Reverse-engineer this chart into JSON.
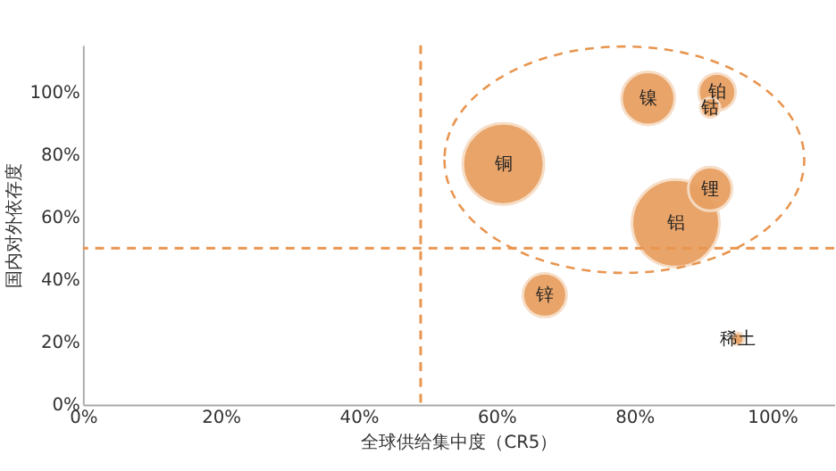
{
  "chart_data": {
    "type": "bubble",
    "xlabel": "全球供给集中度（CR5）",
    "ylabel": "国内对外依存度",
    "xlim": [
      0,
      109
    ],
    "ylim": [
      0,
      115
    ],
    "xticks": [
      {
        "value": 0,
        "label": "0%"
      },
      {
        "value": 20,
        "label": "20%"
      },
      {
        "value": 40,
        "label": "40%"
      },
      {
        "value": 60,
        "label": "60%"
      },
      {
        "value": 80,
        "label": "80%"
      },
      {
        "value": 100,
        "label": "100%"
      }
    ],
    "yticks": [
      {
        "value": 0,
        "label": "0%"
      },
      {
        "value": 20,
        "label": "20%"
      },
      {
        "value": 40,
        "label": "40%"
      },
      {
        "value": 60,
        "label": "60%"
      },
      {
        "value": 80,
        "label": "80%"
      },
      {
        "value": 100,
        "label": "100%"
      }
    ],
    "grid": false,
    "ref_lines": [
      {
        "axis": "x",
        "value": 49,
        "color": "#e8954f",
        "line_style": "dashed"
      },
      {
        "axis": "y",
        "value": 50,
        "color": "#e8954f",
        "line_style": "dashed"
      }
    ],
    "series": [
      {
        "name": "铜",
        "color": "#e8a062",
        "x": [
          61
        ],
        "values": [
          77
        ],
        "sizes": [
          0.86
        ]
      },
      {
        "name": "镍",
        "color": "#e8a062",
        "x": [
          82
        ],
        "values": [
          98
        ],
        "sizes": [
          0.37
        ]
      },
      {
        "name": "钴",
        "color": "#e8a062",
        "x": [
          91
        ],
        "values": [
          95
        ],
        "sizes": [
          0.05
        ]
      },
      {
        "name": "铂",
        "color": "#e8a062",
        "x": [
          92
        ],
        "values": [
          100
        ],
        "sizes": [
          0.18
        ]
      },
      {
        "name": "铝",
        "color": "#e8a062",
        "x": [
          86
        ],
        "values": [
          58
        ],
        "sizes": [
          1
        ]
      },
      {
        "name": "锂",
        "color": "#e8a062",
        "x": [
          91
        ],
        "values": [
          69
        ],
        "sizes": [
          0.25
        ]
      },
      {
        "name": "锌",
        "color": "#e8a062",
        "x": [
          67
        ],
        "values": [
          35
        ],
        "sizes": [
          0.25
        ]
      },
      {
        "name": "稀土",
        "color": "#e8a062",
        "x": [
          95
        ],
        "values": [
          21
        ],
        "sizes": [
          0.02
        ]
      }
    ]
  }
}
